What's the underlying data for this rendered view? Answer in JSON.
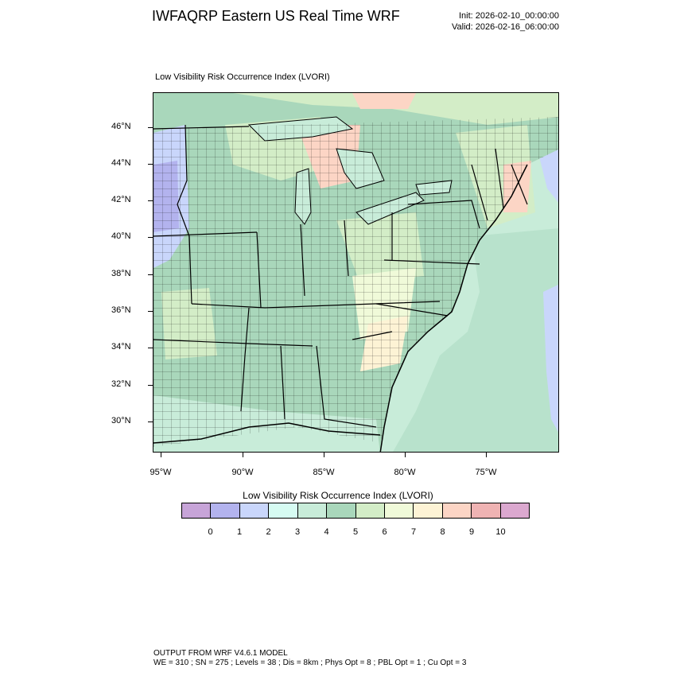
{
  "header": {
    "title": "IWFAQRP Eastern US Real Time WRF",
    "init": "Init: 2026-02-10_00:00:00",
    "valid": "Valid: 2026-02-16_06:00:00"
  },
  "plot": {
    "label": "Low Visibility Risk Occurrence Index   (LVORI)",
    "lat_labels": [
      "46°N",
      "44°N",
      "42°N",
      "40°N",
      "38°N",
      "36°N",
      "34°N",
      "32°N",
      "30°N"
    ],
    "lon_labels": [
      "95°W",
      "90°W",
      "85°W",
      "80°W",
      "75°W"
    ]
  },
  "colorbar": {
    "title": "Low Visibility Risk Occurrence Index  (LVORI)",
    "colors": [
      "#c7a4d8",
      "#b3b3ee",
      "#c9d6fb",
      "#d6fbf2",
      "#c8ecd9",
      "#a9d7bb",
      "#d3edc7",
      "#f0fad9",
      "#fdf3d5",
      "#fcd5c5",
      "#efb3b3",
      "#dba8cf"
    ],
    "labels": [
      "0",
      "1",
      "2",
      "3",
      "4",
      "5",
      "6",
      "7",
      "8",
      "9",
      "10"
    ]
  },
  "footer": {
    "line1": "OUTPUT FROM WRF V4.6.1 MODEL",
    "line2": "WE = 310 ; SN = 275 ; Levels = 38 ; Dis = 8km ; Phys Opt = 8 ; PBL Opt = 1 ; Cu Opt = 3"
  }
}
